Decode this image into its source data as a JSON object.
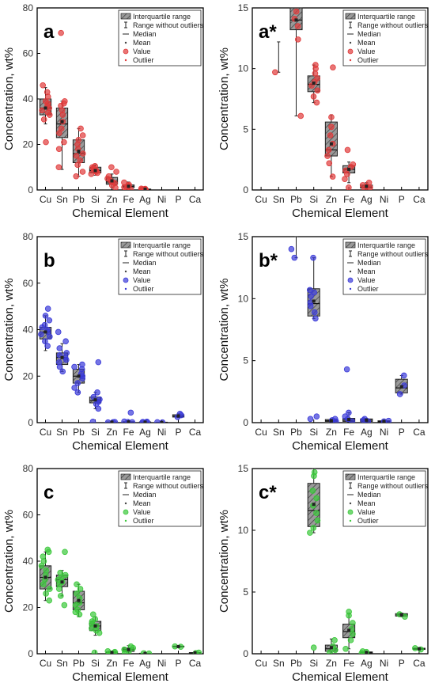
{
  "chart_data": [
    {
      "type": "box",
      "panel": "a",
      "color": "#e03a3a",
      "ylabel": "Concentration, wt%",
      "xlabel": "Chemical Element",
      "ylim": [
        0,
        80
      ],
      "yticks": [
        0,
        20,
        40,
        60,
        80
      ],
      "categories": [
        "Cu",
        "Sn",
        "Pb",
        "Si",
        "Zn",
        "Fe",
        "Ag",
        "Ni",
        "P",
        "Ca"
      ],
      "boxes": [
        {
          "element": "Cu",
          "q1": 33,
          "median": 36,
          "q3": 40,
          "min": 29,
          "max": 45,
          "mean": 36
        },
        {
          "element": "Sn",
          "q1": 23,
          "median": 29,
          "q3": 36,
          "min": 9,
          "max": 39,
          "mean": 30
        },
        {
          "element": "Pb",
          "q1": 12,
          "median": 16,
          "q3": 22,
          "min": 6,
          "max": 27,
          "mean": 17
        },
        {
          "element": "Si",
          "q1": 7.5,
          "median": 8.5,
          "q3": 10,
          "min": 6.5,
          "max": 11,
          "mean": 8.5
        },
        {
          "element": "Zn",
          "q1": 2.5,
          "median": 3.5,
          "q3": 5.5,
          "min": 1,
          "max": 7,
          "mean": 4
        },
        {
          "element": "Fe",
          "q1": 1,
          "median": 1.6,
          "q3": 2.2,
          "min": 0.2,
          "max": 3.5,
          "mean": 1.6
        },
        {
          "element": "Ag",
          "q1": 0.1,
          "median": 0.2,
          "q3": 0.4,
          "min": 0.05,
          "max": 0.6,
          "mean": 0.3
        }
      ],
      "points": [
        {
          "element": "Cu",
          "values": [
            21,
            31,
            33,
            34,
            35,
            36,
            37,
            38,
            39,
            41,
            43,
            46
          ]
        },
        {
          "element": "Sn",
          "values": [
            69,
            10,
            18,
            21,
            25,
            27,
            30,
            33,
            35,
            37,
            38,
            39
          ]
        },
        {
          "element": "Pb",
          "values": [
            6,
            8,
            11,
            13,
            15,
            16,
            18,
            20,
            22,
            24,
            27
          ]
        },
        {
          "element": "Si",
          "values": [
            7,
            7.5,
            8,
            8.5,
            9,
            9,
            9.5,
            10,
            10.5
          ]
        },
        {
          "element": "Zn",
          "values": [
            1,
            2,
            3,
            3.5,
            4,
            5,
            6,
            8,
            10
          ]
        },
        {
          "element": "Fe",
          "values": [
            0.2,
            0.8,
            1.2,
            1.6,
            2,
            2.3,
            3.3
          ]
        },
        {
          "element": "Ag",
          "values": [
            0.1,
            0.2,
            0.3,
            0.4,
            0.5,
            0.6
          ]
        }
      ]
    },
    {
      "type": "box",
      "panel": "a*",
      "color": "#e03a3a",
      "ylabel": "Concentration, wt%",
      "xlabel": "Chemical Element",
      "ylim": [
        0,
        15
      ],
      "yticks": [
        0,
        5,
        10,
        15
      ],
      "categories": [
        "Cu",
        "Sn",
        "Pb",
        "Si",
        "Zn",
        "Fe",
        "Ag",
        "Ni",
        "P",
        "Ca"
      ],
      "boxes": [
        {
          "element": "Sn",
          "q1": null,
          "median": null,
          "q3": null,
          "min": 9.7,
          "max": 12.2,
          "mean": null
        },
        {
          "element": "Pb",
          "q1": 13.2,
          "median": 14,
          "q3": 15,
          "min": 6.1,
          "max": 15,
          "mean": 14
        },
        {
          "element": "Si",
          "q1": 8.1,
          "median": 8.7,
          "q3": 9.4,
          "min": 7.2,
          "max": 10.3,
          "mean": 8.8
        },
        {
          "element": "Zn",
          "q1": 2.8,
          "median": 3.3,
          "q3": 5.6,
          "min": 1.1,
          "max": 6.2,
          "mean": 3.8
        },
        {
          "element": "Fe",
          "q1": 1.4,
          "median": 1.7,
          "q3": 2.0,
          "min": 0.6,
          "max": 2.3,
          "mean": 1.7
        },
        {
          "element": "Ag",
          "q1": 0.15,
          "median": 0.25,
          "q3": 0.4,
          "min": 0.05,
          "max": 0.6,
          "mean": 0.3
        }
      ],
      "points": [
        {
          "element": "Sn",
          "values": [
            9.7
          ]
        },
        {
          "element": "Pb",
          "values": [
            6.1,
            12.4,
            13.5,
            14.1,
            14.7
          ]
        },
        {
          "element": "Si",
          "values": [
            7.2,
            7.7,
            8.2,
            8.6,
            8.9,
            9.2,
            9.6,
            10,
            10.3
          ]
        },
        {
          "element": "Zn",
          "values": [
            1.1,
            2.2,
            2.8,
            3.3,
            3.8,
            4.5,
            5.2,
            6,
            10.1
          ]
        },
        {
          "element": "Fe",
          "values": [
            0.2,
            0.9,
            1.3,
            1.6,
            1.9,
            2.1,
            3.3
          ]
        },
        {
          "element": "Ag",
          "values": [
            0.1,
            0.2,
            0.3,
            0.4,
            0.6
          ]
        }
      ]
    },
    {
      "type": "box",
      "panel": "b",
      "color": "#3a3ad8",
      "ylabel": "Concentration, wt%",
      "xlabel": "Chemical Element",
      "ylim": [
        0,
        80
      ],
      "yticks": [
        0,
        20,
        40,
        60,
        80
      ],
      "categories": [
        "Cu",
        "Sn",
        "Pb",
        "Si",
        "Zn",
        "Fe",
        "Ag",
        "Ni",
        "P",
        "Ca"
      ],
      "boxes": [
        {
          "element": "Cu",
          "q1": 36,
          "median": 39,
          "q3": 41,
          "min": 31,
          "max": 46,
          "mean": 39
        },
        {
          "element": "Sn",
          "q1": 25,
          "median": 28,
          "q3": 30,
          "min": 22,
          "max": 34,
          "mean": 28
        },
        {
          "element": "Pb",
          "q1": 17,
          "median": 20,
          "q3": 23,
          "min": 13,
          "max": 25,
          "mean": 20
        },
        {
          "element": "Si",
          "q1": 8.5,
          "median": 9.5,
          "q3": 11,
          "min": 6,
          "max": 13,
          "mean": 9.8
        },
        {
          "element": "Zn",
          "q1": 0.1,
          "median": 0.15,
          "q3": 0.3,
          "min": 0,
          "max": 0.5,
          "mean": 0.2
        },
        {
          "element": "Fe",
          "q1": 0.1,
          "median": 0.2,
          "q3": 0.4,
          "min": 0,
          "max": 0.8,
          "mean": 0.3
        },
        {
          "element": "Ag",
          "q1": 0.1,
          "median": 0.2,
          "q3": 0.3,
          "min": 0,
          "max": 0.4,
          "mean": 0.2
        },
        {
          "element": "Ni",
          "q1": 0.05,
          "median": 0.1,
          "q3": 0.2,
          "min": 0,
          "max": 0.3,
          "mean": 0.1
        },
        {
          "element": "P",
          "q1": 2.4,
          "median": 2.8,
          "q3": 3.4,
          "min": 2.2,
          "max": 3.8,
          "mean": 2.9
        }
      ],
      "points": [
        {
          "element": "Cu",
          "values": [
            33,
            35,
            37,
            38,
            39,
            40,
            41,
            42,
            44,
            46,
            49
          ]
        },
        {
          "element": "Sn",
          "values": [
            22,
            24,
            26,
            27,
            28,
            29,
            30,
            32,
            35,
            39
          ]
        },
        {
          "element": "Pb",
          "values": [
            13,
            15,
            17,
            19,
            20,
            21,
            23,
            24,
            25
          ]
        },
        {
          "element": "Si",
          "values": [
            0.4,
            6,
            8,
            9,
            10,
            11,
            13,
            26
          ]
        },
        {
          "element": "Zn",
          "values": [
            0.1,
            0.2,
            0.3
          ]
        },
        {
          "element": "Fe",
          "values": [
            0.2,
            0.3,
            0.5,
            4.3
          ]
        },
        {
          "element": "Ag",
          "values": [
            0.1,
            0.2,
            0.3,
            0.4
          ]
        },
        {
          "element": "Ni",
          "values": [
            0.1,
            0.2
          ]
        },
        {
          "element": "P",
          "values": [
            2.4,
            3.2,
            3.8
          ]
        }
      ]
    },
    {
      "type": "box",
      "panel": "b*",
      "color": "#3a3ad8",
      "ylabel": "Concentration, wt%",
      "xlabel": "Chemical Element",
      "ylim": [
        0,
        15
      ],
      "yticks": [
        0,
        5,
        10,
        15
      ],
      "categories": [
        "Cu",
        "Sn",
        "Pb",
        "Si",
        "Zn",
        "Fe",
        "Ag",
        "Ni",
        "P",
        "Ca"
      ],
      "boxes": [
        {
          "element": "Pb",
          "q1": null,
          "median": null,
          "q3": null,
          "min": 13.3,
          "max": 15,
          "mean": null
        },
        {
          "element": "Si",
          "q1": 8.6,
          "median": 9.6,
          "q3": 10.8,
          "min": 8.4,
          "max": 13.3,
          "mean": 9.8
        },
        {
          "element": "Zn",
          "q1": 0.1,
          "median": 0.15,
          "q3": 0.25,
          "min": 0.05,
          "max": 0.3,
          "mean": 0.15
        },
        {
          "element": "Fe",
          "q1": 0.1,
          "median": 0.2,
          "q3": 0.35,
          "min": 0.05,
          "max": 0.8,
          "mean": 0.25
        },
        {
          "element": "Ag",
          "q1": 0.1,
          "median": 0.2,
          "q3": 0.3,
          "min": 0.05,
          "max": 0.35,
          "mean": 0.2
        },
        {
          "element": "Ni",
          "q1": 0.05,
          "median": 0.1,
          "q3": 0.15,
          "min": 0.02,
          "max": 0.2,
          "mean": 0.1
        },
        {
          "element": "P",
          "q1": 2.4,
          "median": 2.8,
          "q3": 3.5,
          "min": 2.3,
          "max": 3.8,
          "mean": 2.9
        }
      ],
      "points": [
        {
          "element": "Pb",
          "values": [
            13.3,
            14
          ]
        },
        {
          "element": "Si",
          "values": [
            0.3,
            0.5,
            8.4,
            8.9,
            9.4,
            9.7,
            10.2,
            10.5,
            10.7,
            13.3
          ]
        },
        {
          "element": "Zn",
          "values": [
            0.1,
            0.2,
            0.3
          ]
        },
        {
          "element": "Fe",
          "values": [
            0.1,
            0.3,
            0.5,
            0.8,
            4.3
          ]
        },
        {
          "element": "Ag",
          "values": [
            0.1,
            0.2,
            0.3
          ]
        },
        {
          "element": "Ni",
          "values": [
            0.1,
            0.15
          ]
        },
        {
          "element": "P",
          "values": [
            2.3,
            3.0,
            3.8
          ]
        }
      ]
    },
    {
      "type": "box",
      "panel": "c",
      "color": "#3ac83a",
      "ylabel": "Concentration, wt%",
      "xlabel": "Chemical Element",
      "ylim": [
        0,
        80
      ],
      "yticks": [
        0,
        20,
        40,
        60,
        80
      ],
      "categories": [
        "Cu",
        "Sn",
        "Pb",
        "Si",
        "Zn",
        "Fe",
        "Ag",
        "Ni",
        "P",
        "Ca"
      ],
      "boxes": [
        {
          "element": "Cu",
          "q1": 28,
          "median": 33,
          "q3": 38,
          "min": 23,
          "max": 44,
          "mean": 33
        },
        {
          "element": "Sn",
          "q1": 29,
          "median": 32,
          "q3": 34,
          "min": 25,
          "max": 36,
          "mean": 31
        },
        {
          "element": "Pb",
          "q1": 19,
          "median": 22,
          "q3": 27,
          "min": 16,
          "max": 30,
          "mean": 23
        },
        {
          "element": "Si",
          "q1": 10,
          "median": 12,
          "q3": 14,
          "min": 8,
          "max": 16,
          "mean": 12
        },
        {
          "element": "Zn",
          "q1": 0.2,
          "median": 0.4,
          "q3": 0.8,
          "min": 0.1,
          "max": 1.2,
          "mean": 0.5
        },
        {
          "element": "Fe",
          "q1": 1,
          "median": 1.8,
          "q3": 2.5,
          "min": 0.3,
          "max": 3.5,
          "mean": 1.8
        },
        {
          "element": "Ag",
          "q1": 0.05,
          "median": 0.1,
          "q3": 0.2,
          "min": 0.02,
          "max": 0.3,
          "mean": 0.1
        },
        {
          "element": "P",
          "q1": 3.0,
          "median": 3.1,
          "q3": 3.3,
          "min": 2.9,
          "max": 3.4,
          "mean": 3.1
        },
        {
          "element": "Ca",
          "q1": 0.3,
          "median": 0.4,
          "q3": 0.5,
          "min": 0.2,
          "max": 0.6,
          "mean": 0.4
        }
      ],
      "points": [
        {
          "element": "Cu",
          "values": [
            23,
            26,
            28,
            30,
            32,
            34,
            36,
            38,
            40,
            42,
            44,
            45
          ]
        },
        {
          "element": "Sn",
          "values": [
            21,
            25,
            28,
            30,
            31,
            32,
            33,
            34,
            35,
            44
          ]
        },
        {
          "element": "Pb",
          "values": [
            17,
            18,
            19,
            21,
            22,
            24,
            26,
            28,
            30
          ]
        },
        {
          "element": "Si",
          "values": [
            0.5,
            9,
            10,
            11,
            12,
            13,
            14,
            15,
            17
          ]
        },
        {
          "element": "Zn",
          "values": [
            0.2,
            0.5,
            0.8,
            1.1
          ]
        },
        {
          "element": "Fe",
          "values": [
            0.3,
            1,
            1.8,
            2.5,
            3.2
          ]
        },
        {
          "element": "Ag",
          "values": [
            0.1,
            0.2
          ]
        },
        {
          "element": "P",
          "values": [
            3.0,
            3.2
          ]
        },
        {
          "element": "Ca",
          "values": [
            0.3,
            0.5
          ]
        }
      ]
    },
    {
      "type": "box",
      "panel": "c*",
      "color": "#3ac83a",
      "ylabel": "Concentration, wt%",
      "xlabel": "Chemical Element",
      "ylim": [
        0,
        15
      ],
      "yticks": [
        0,
        5,
        10,
        15
      ],
      "categories": [
        "Cu",
        "Sn",
        "Pb",
        "Si",
        "Zn",
        "Fe",
        "Ag",
        "Ni",
        "P",
        "Ca"
      ],
      "boxes": [
        {
          "element": "Si",
          "q1": 10.3,
          "median": 11.6,
          "q3": 13.8,
          "min": 9.8,
          "max": 15,
          "mean": 12.1
        },
        {
          "element": "Zn",
          "q1": 0.2,
          "median": 0.4,
          "q3": 0.7,
          "min": 0.05,
          "max": 1.2,
          "mean": 0.5
        },
        {
          "element": "Fe",
          "q1": 1.3,
          "median": 1.8,
          "q3": 2.4,
          "min": 0.4,
          "max": 3.3,
          "mean": 1.9
        },
        {
          "element": "Ag",
          "q1": 0.05,
          "median": 0.1,
          "q3": 0.15,
          "min": 0.02,
          "max": 0.2,
          "mean": 0.1
        },
        {
          "element": "P",
          "q1": 3.05,
          "median": 3.15,
          "q3": 3.25,
          "min": 3.0,
          "max": 3.3,
          "mean": 3.15
        },
        {
          "element": "Ca",
          "q1": 0.35,
          "median": 0.4,
          "q3": 0.45,
          "min": 0.3,
          "max": 0.5,
          "mean": 0.4
        }
      ],
      "points": [
        {
          "element": "Si",
          "values": [
            0.5,
            9.8,
            10.2,
            10.8,
            11.4,
            12,
            12.6,
            13.2,
            14.4,
            14.7
          ]
        },
        {
          "element": "Zn",
          "values": [
            0.1,
            0.3,
            0.6,
            1.1
          ]
        },
        {
          "element": "Fe",
          "values": [
            0.4,
            1.1,
            1.6,
            2,
            2.5,
            3.1,
            3.4
          ]
        },
        {
          "element": "Ag",
          "values": [
            0.05,
            0.15,
            0.2
          ]
        },
        {
          "element": "P",
          "values": [
            3.0,
            3.2
          ]
        },
        {
          "element": "Ca",
          "values": [
            0.35,
            0.45
          ]
        }
      ]
    }
  ],
  "legend": {
    "items": [
      {
        "label": "Interquartile range",
        "symbol": "box"
      },
      {
        "label": "Range without outliers",
        "symbol": "whisker"
      },
      {
        "label": "Median",
        "symbol": "line"
      },
      {
        "label": "Mean",
        "symbol": "small-dot"
      },
      {
        "label": "Value",
        "symbol": "circle"
      },
      {
        "label": "Outlier",
        "symbol": "small-dot"
      }
    ]
  }
}
